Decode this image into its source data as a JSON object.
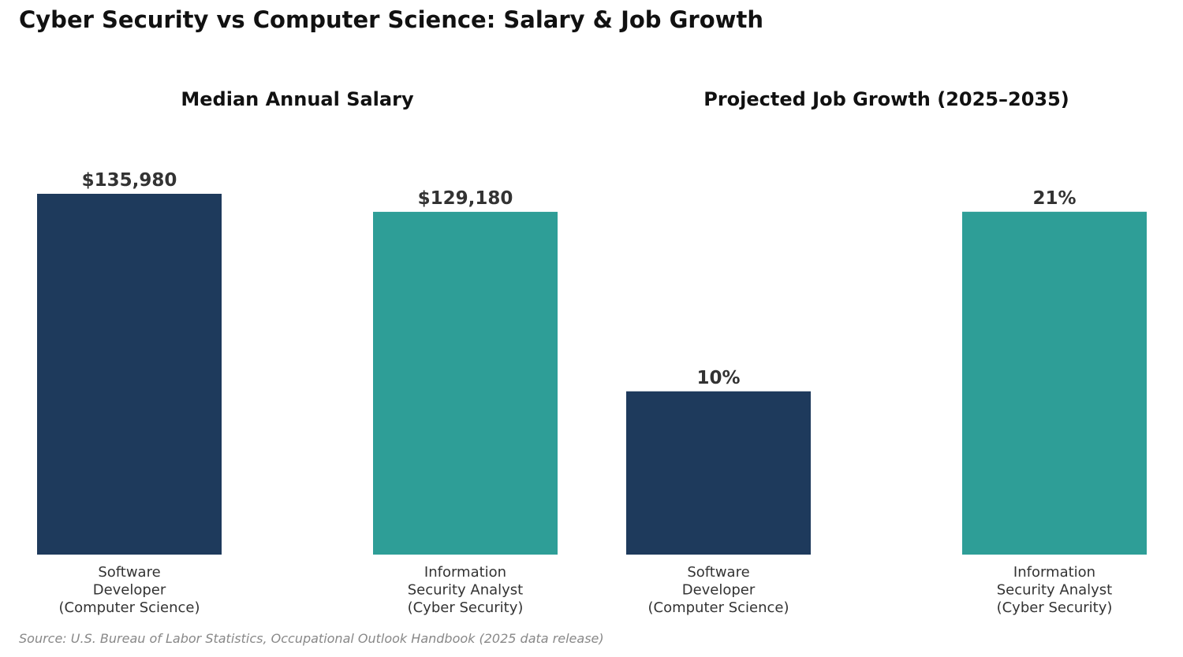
{
  "title": "Cyber Security vs Computer Science: Salary & Job Growth",
  "source": "Source: U.S. Bureau of Labor Statistics, Occupational Outlook Handbook (2025 data release)",
  "colors": {
    "computer_science": "#1e3a5c",
    "cyber_security": "#2e9e97"
  },
  "chart_data": [
    {
      "type": "bar",
      "title": "Median Annual Salary",
      "categories": [
        [
          "Software",
          "Developer",
          "(Computer Science)"
        ],
        [
          "Information",
          "Security Analyst",
          "(Cyber Security)"
        ]
      ],
      "values": [
        135980,
        129180
      ],
      "labels": [
        "$135,980",
        "$129,180"
      ],
      "ylim": [
        0,
        135980
      ]
    },
    {
      "type": "bar",
      "title": "Projected Job Growth (2025–2035)",
      "categories": [
        [
          "Software",
          "Developer",
          "(Computer Science)"
        ],
        [
          "Information",
          "Security Analyst",
          "(Cyber Security)"
        ]
      ],
      "values": [
        10,
        21
      ],
      "labels": [
        "10%",
        "21%"
      ],
      "ylim": [
        0,
        22.1
      ]
    }
  ]
}
